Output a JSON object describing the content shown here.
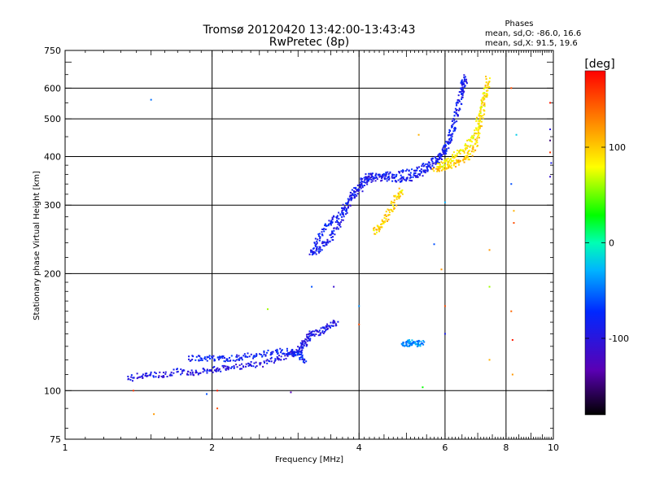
{
  "chart_data": {
    "type": "scatter",
    "title": "Tromsø 20120420 13:42:00-13:43:43",
    "subtitle": "RwPretec (8p)",
    "xlabel": "Frequency [MHz]",
    "ylabel": "Stationary phase Virtual Height [km]",
    "xscale": "log",
    "yscale": "log",
    "xlim": [
      1,
      10
    ],
    "ylim": [
      75,
      750
    ],
    "x_ticks": [
      1,
      2,
      4,
      6,
      8,
      10
    ],
    "x_tick_labels": [
      "1",
      "2",
      "4",
      "6",
      "8",
      "10"
    ],
    "y_ticks": [
      75,
      100,
      200,
      300,
      400,
      500,
      600,
      750
    ],
    "y_tick_labels": [
      "75",
      "100",
      "200",
      "300",
      "400",
      "500",
      "600",
      "750"
    ],
    "grid": true,
    "stats": {
      "heading": "Phases",
      "line_o": "mean, sd,O: -86.0, 16.6",
      "line_x": "mean, sd,X:  91.5, 19.6"
    },
    "colorbar": {
      "unit": "[deg]",
      "range": [
        -180,
        180
      ],
      "ticks": [
        100,
        0,
        -100
      ],
      "tick_labels": [
        "100",
        "0",
        "-100"
      ]
    },
    "traces": [
      {
        "kind": "O",
        "phase": -95,
        "points": [
          [
            1.35,
            107
          ],
          [
            1.42,
            109
          ],
          [
            1.5,
            110
          ],
          [
            1.6,
            110
          ],
          [
            1.7,
            112
          ],
          [
            1.8,
            111
          ],
          [
            1.9,
            112
          ],
          [
            2.0,
            113
          ],
          [
            2.1,
            114
          ],
          [
            2.2,
            115
          ],
          [
            2.35,
            116
          ],
          [
            2.5,
            117
          ],
          [
            2.65,
            120
          ],
          [
            2.8,
            122
          ],
          [
            2.9,
            124
          ],
          [
            3.0,
            127
          ],
          [
            3.05,
            130
          ],
          [
            3.1,
            133
          ],
          [
            3.15,
            137
          ],
          [
            3.2,
            140
          ],
          [
            3.3,
            141
          ],
          [
            3.4,
            144
          ],
          [
            3.5,
            147
          ],
          [
            3.6,
            150
          ]
        ]
      },
      {
        "kind": "O",
        "phase": -80,
        "points": [
          [
            1.8,
            121
          ],
          [
            1.9,
            121
          ],
          [
            2.0,
            121
          ],
          [
            2.1,
            121
          ],
          [
            2.2,
            121
          ],
          [
            2.3,
            122
          ],
          [
            2.45,
            123
          ],
          [
            2.6,
            125
          ],
          [
            2.75,
            126
          ],
          [
            2.9,
            126
          ],
          [
            3.0,
            125
          ],
          [
            3.05,
            122
          ],
          [
            3.1,
            119
          ]
        ]
      },
      {
        "kind": "O",
        "phase": -90,
        "points": [
          [
            3.2,
            225
          ],
          [
            3.3,
            230
          ],
          [
            3.4,
            238
          ],
          [
            3.5,
            248
          ],
          [
            3.6,
            262
          ],
          [
            3.7,
            280
          ],
          [
            3.8,
            300
          ],
          [
            3.9,
            322
          ],
          [
            4.0,
            338
          ],
          [
            4.1,
            350
          ],
          [
            4.2,
            356
          ],
          [
            4.3,
            356
          ],
          [
            4.5,
            352
          ],
          [
            4.7,
            348
          ],
          [
            4.9,
            349
          ],
          [
            5.1,
            352
          ],
          [
            5.3,
            358
          ],
          [
            5.5,
            368
          ],
          [
            5.7,
            382
          ],
          [
            5.9,
            400
          ],
          [
            6.0,
            415
          ],
          [
            6.15,
            450
          ],
          [
            6.3,
            500
          ],
          [
            6.45,
            560
          ],
          [
            6.55,
            610
          ],
          [
            6.6,
            640
          ]
        ]
      },
      {
        "kind": "O",
        "phase": -85,
        "points": [
          [
            3.2,
            230
          ],
          [
            3.3,
            245
          ],
          [
            3.4,
            260
          ],
          [
            3.5,
            270
          ],
          [
            3.6,
            280
          ],
          [
            3.75,
            298
          ],
          [
            3.9,
            318
          ],
          [
            4.05,
            335
          ],
          [
            4.25,
            350
          ],
          [
            4.5,
            358
          ],
          [
            4.8,
            362
          ],
          [
            5.1,
            366
          ],
          [
            5.4,
            375
          ],
          [
            5.7,
            390
          ],
          [
            5.95,
            410
          ],
          [
            6.1,
            440
          ],
          [
            6.25,
            480
          ],
          [
            6.4,
            540
          ],
          [
            6.5,
            600
          ],
          [
            6.6,
            640
          ]
        ]
      },
      {
        "kind": "X",
        "phase": 95,
        "points": [
          [
            4.3,
            256
          ],
          [
            4.4,
            262
          ],
          [
            4.5,
            272
          ],
          [
            4.6,
            286
          ],
          [
            4.7,
            300
          ],
          [
            4.8,
            318
          ],
          [
            4.9,
            330
          ]
        ]
      },
      {
        "kind": "X",
        "phase": 100,
        "points": [
          [
            5.7,
            370
          ],
          [
            5.9,
            372
          ],
          [
            6.1,
            378
          ],
          [
            6.3,
            385
          ],
          [
            6.5,
            392
          ],
          [
            6.7,
            400
          ],
          [
            6.9,
            420
          ],
          [
            7.0,
            450
          ],
          [
            7.1,
            490
          ],
          [
            7.2,
            540
          ],
          [
            7.3,
            600
          ],
          [
            7.35,
            640
          ]
        ]
      },
      {
        "kind": "X",
        "phase": 85,
        "points": [
          [
            5.8,
            380
          ],
          [
            6.0,
            385
          ],
          [
            6.2,
            395
          ],
          [
            6.4,
            410
          ],
          [
            6.6,
            420
          ],
          [
            6.8,
            440
          ],
          [
            6.95,
            470
          ],
          [
            7.1,
            510
          ],
          [
            7.2,
            560
          ],
          [
            7.3,
            610
          ]
        ]
      },
      {
        "kind": "E",
        "phase": -40,
        "points": [
          [
            4.9,
            132
          ],
          [
            5.0,
            132
          ],
          [
            5.1,
            133
          ],
          [
            5.2,
            132
          ],
          [
            5.3,
            132
          ],
          [
            5.4,
            133
          ]
        ]
      }
    ],
    "scatter": [
      {
        "x": 1.5,
        "y": 560,
        "phase": -50
      },
      {
        "x": 1.38,
        "y": 100,
        "phase": 160
      },
      {
        "x": 1.52,
        "y": 87,
        "phase": 120
      },
      {
        "x": 1.95,
        "y": 98,
        "phase": -60
      },
      {
        "x": 2.05,
        "y": 90,
        "phase": 150
      },
      {
        "x": 2.05,
        "y": 100,
        "phase": 170
      },
      {
        "x": 2.6,
        "y": 162,
        "phase": 60
      },
      {
        "x": 2.9,
        "y": 99,
        "phase": -130
      },
      {
        "x": 3.2,
        "y": 185,
        "phase": -60
      },
      {
        "x": 3.55,
        "y": 185,
        "phase": -110
      },
      {
        "x": 4.0,
        "y": 148,
        "phase": 150
      },
      {
        "x": 4.0,
        "y": 165,
        "phase": -40
      },
      {
        "x": 5.3,
        "y": 455,
        "phase": 110
      },
      {
        "x": 5.4,
        "y": 102,
        "phase": 30
      },
      {
        "x": 5.7,
        "y": 238,
        "phase": -60
      },
      {
        "x": 5.9,
        "y": 205,
        "phase": 120
      },
      {
        "x": 6.0,
        "y": 305,
        "phase": -30
      },
      {
        "x": 6.0,
        "y": 165,
        "phase": 150
      },
      {
        "x": 6.0,
        "y": 140,
        "phase": -90
      },
      {
        "x": 7.4,
        "y": 185,
        "phase": 60
      },
      {
        "x": 7.4,
        "y": 230,
        "phase": 120
      },
      {
        "x": 7.4,
        "y": 120,
        "phase": 110
      },
      {
        "x": 8.2,
        "y": 600,
        "phase": 150
      },
      {
        "x": 8.2,
        "y": 340,
        "phase": -60
      },
      {
        "x": 8.3,
        "y": 290,
        "phase": 110
      },
      {
        "x": 8.3,
        "y": 270,
        "phase": 150
      },
      {
        "x": 8.25,
        "y": 110,
        "phase": 120
      },
      {
        "x": 8.2,
        "y": 160,
        "phase": 140
      },
      {
        "x": 8.25,
        "y": 135,
        "phase": 170
      },
      {
        "x": 8.4,
        "y": 455,
        "phase": -20
      },
      {
        "x": 9.85,
        "y": 550,
        "phase": 170
      },
      {
        "x": 9.85,
        "y": 470,
        "phase": -100
      },
      {
        "x": 9.85,
        "y": 440,
        "phase": -150
      },
      {
        "x": 9.85,
        "y": 410,
        "phase": 160
      },
      {
        "x": 9.9,
        "y": 385,
        "phase": -90
      },
      {
        "x": 9.85,
        "y": 355,
        "phase": -110
      }
    ]
  }
}
